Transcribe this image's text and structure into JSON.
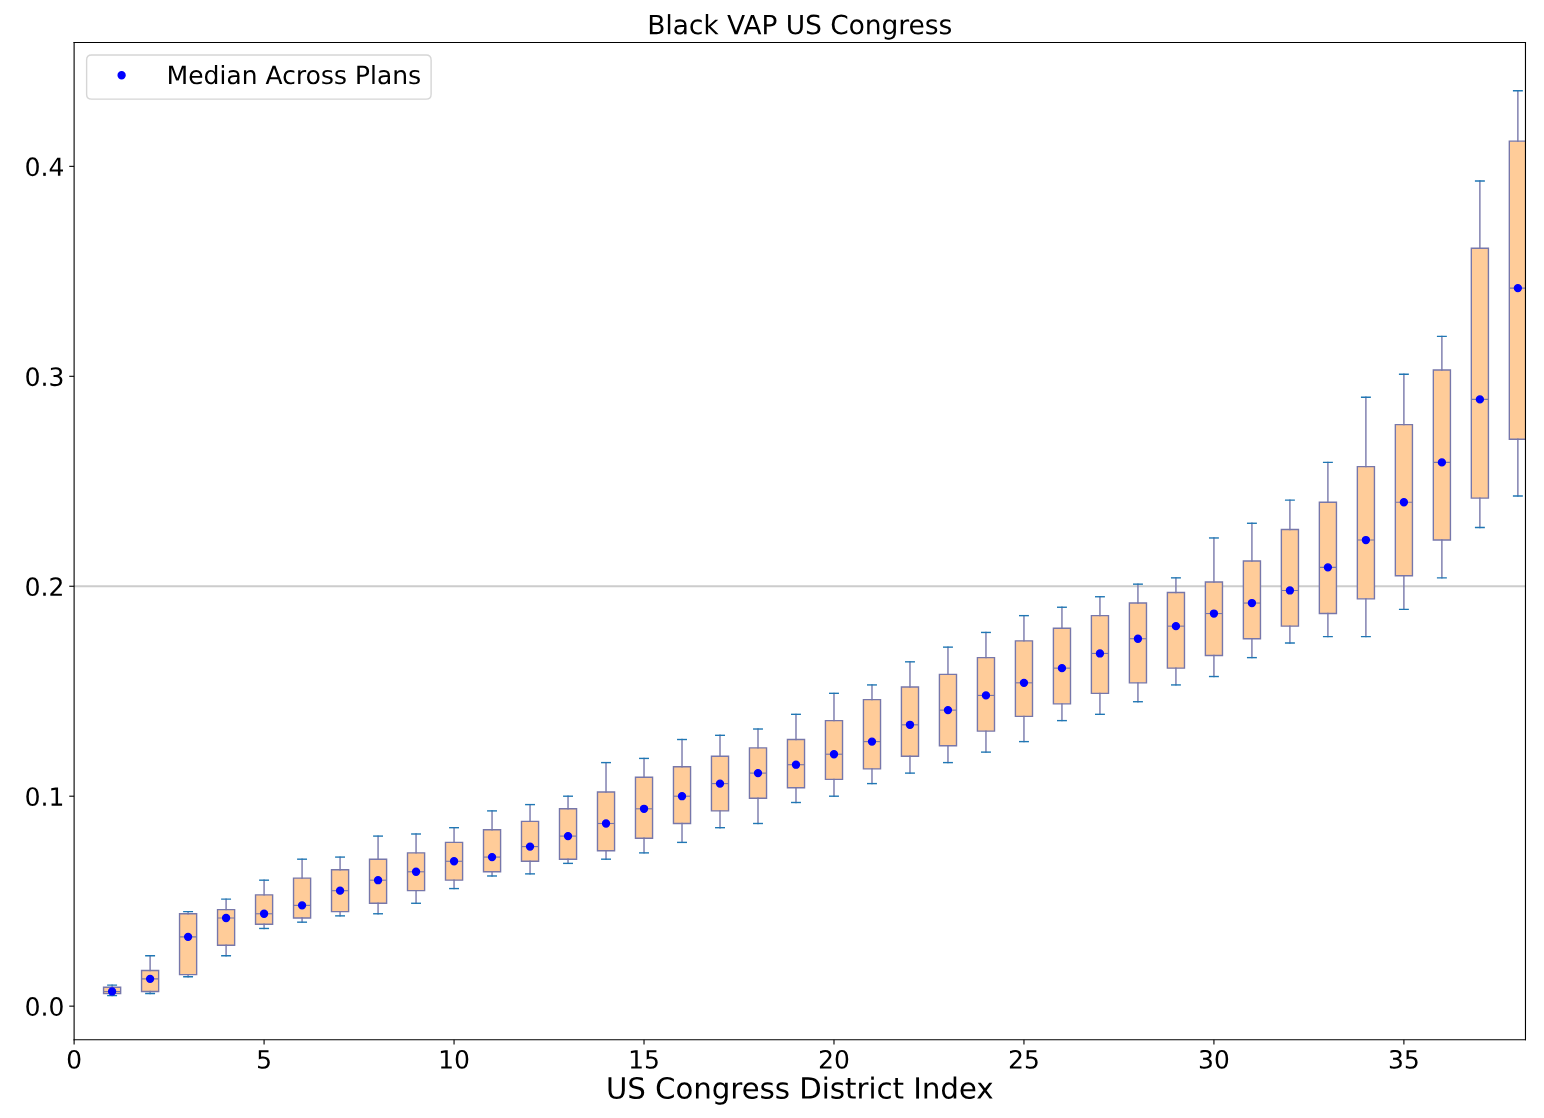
{
  "chart_data": {
    "type": "box",
    "title": "Black VAP US Congress",
    "xlabel": "US Congress District Index",
    "x": [
      1,
      2,
      3,
      4,
      5,
      6,
      7,
      8,
      9,
      10,
      11,
      12,
      13,
      14,
      15,
      16,
      17,
      18,
      19,
      20,
      21,
      22,
      23,
      24,
      25,
      26,
      27,
      28,
      29,
      30,
      31,
      32,
      33,
      34,
      35,
      36,
      37,
      38
    ],
    "color": "#ffcc99",
    "boxes": [
      {
        "low": 0.005,
        "q1": 0.006,
        "median": 0.007,
        "q3": 0.009,
        "high": 0.01
      },
      {
        "low": 0.006,
        "q1": 0.007,
        "median": 0.013,
        "q3": 0.017,
        "high": 0.024
      },
      {
        "low": 0.014,
        "q1": 0.015,
        "median": 0.033,
        "q3": 0.044,
        "high": 0.045
      },
      {
        "low": 0.024,
        "q1": 0.029,
        "median": 0.042,
        "q3": 0.046,
        "high": 0.051
      },
      {
        "low": 0.037,
        "q1": 0.039,
        "median": 0.044,
        "q3": 0.053,
        "high": 0.06
      },
      {
        "low": 0.04,
        "q1": 0.042,
        "median": 0.048,
        "q3": 0.061,
        "high": 0.07
      },
      {
        "low": 0.043,
        "q1": 0.045,
        "median": 0.055,
        "q3": 0.065,
        "high": 0.071
      },
      {
        "low": 0.044,
        "q1": 0.049,
        "median": 0.06,
        "q3": 0.07,
        "high": 0.081
      },
      {
        "low": 0.049,
        "q1": 0.055,
        "median": 0.064,
        "q3": 0.073,
        "high": 0.082
      },
      {
        "low": 0.056,
        "q1": 0.06,
        "median": 0.069,
        "q3": 0.078,
        "high": 0.085
      },
      {
        "low": 0.062,
        "q1": 0.064,
        "median": 0.071,
        "q3": 0.084,
        "high": 0.093
      },
      {
        "low": 0.063,
        "q1": 0.069,
        "median": 0.076,
        "q3": 0.088,
        "high": 0.096
      },
      {
        "low": 0.068,
        "q1": 0.07,
        "median": 0.081,
        "q3": 0.094,
        "high": 0.1
      },
      {
        "low": 0.07,
        "q1": 0.074,
        "median": 0.087,
        "q3": 0.102,
        "high": 0.116
      },
      {
        "low": 0.073,
        "q1": 0.08,
        "median": 0.094,
        "q3": 0.109,
        "high": 0.118
      },
      {
        "low": 0.078,
        "q1": 0.087,
        "median": 0.1,
        "q3": 0.114,
        "high": 0.127
      },
      {
        "low": 0.085,
        "q1": 0.093,
        "median": 0.106,
        "q3": 0.119,
        "high": 0.129
      },
      {
        "low": 0.087,
        "q1": 0.099,
        "median": 0.111,
        "q3": 0.123,
        "high": 0.132
      },
      {
        "low": 0.097,
        "q1": 0.104,
        "median": 0.115,
        "q3": 0.127,
        "high": 0.139
      },
      {
        "low": 0.1,
        "q1": 0.108,
        "median": 0.12,
        "q3": 0.136,
        "high": 0.149
      },
      {
        "low": 0.106,
        "q1": 0.113,
        "median": 0.126,
        "q3": 0.146,
        "high": 0.153
      },
      {
        "low": 0.111,
        "q1": 0.119,
        "median": 0.134,
        "q3": 0.152,
        "high": 0.164
      },
      {
        "low": 0.116,
        "q1": 0.124,
        "median": 0.141,
        "q3": 0.158,
        "high": 0.171
      },
      {
        "low": 0.121,
        "q1": 0.131,
        "median": 0.148,
        "q3": 0.166,
        "high": 0.178
      },
      {
        "low": 0.126,
        "q1": 0.138,
        "median": 0.154,
        "q3": 0.174,
        "high": 0.186
      },
      {
        "low": 0.136,
        "q1": 0.144,
        "median": 0.161,
        "q3": 0.18,
        "high": 0.19
      },
      {
        "low": 0.139,
        "q1": 0.149,
        "median": 0.168,
        "q3": 0.186,
        "high": 0.195
      },
      {
        "low": 0.145,
        "q1": 0.154,
        "median": 0.175,
        "q3": 0.192,
        "high": 0.201
      },
      {
        "low": 0.153,
        "q1": 0.161,
        "median": 0.181,
        "q3": 0.197,
        "high": 0.204
      },
      {
        "low": 0.157,
        "q1": 0.167,
        "median": 0.187,
        "q3": 0.202,
        "high": 0.223
      },
      {
        "low": 0.166,
        "q1": 0.175,
        "median": 0.192,
        "q3": 0.212,
        "high": 0.23
      },
      {
        "low": 0.173,
        "q1": 0.181,
        "median": 0.198,
        "q3": 0.227,
        "high": 0.241
      },
      {
        "low": 0.176,
        "q1": 0.187,
        "median": 0.209,
        "q3": 0.24,
        "high": 0.259
      },
      {
        "low": 0.176,
        "q1": 0.194,
        "median": 0.222,
        "q3": 0.257,
        "high": 0.29
      },
      {
        "low": 0.189,
        "q1": 0.205,
        "median": 0.24,
        "q3": 0.277,
        "high": 0.301
      },
      {
        "low": 0.204,
        "q1": 0.222,
        "median": 0.259,
        "q3": 0.303,
        "high": 0.319
      },
      {
        "low": 0.228,
        "q1": 0.242,
        "median": 0.289,
        "q3": 0.361,
        "high": 0.393
      },
      {
        "low": 0.243,
        "q1": 0.27,
        "median": 0.342,
        "q3": 0.412,
        "high": 0.436
      }
    ],
    "series": [
      {
        "name": "Median Across Plans",
        "type": "scatter",
        "color": "#0000ff",
        "marker": "circle",
        "values": [
          0.007,
          0.013,
          0.033,
          0.042,
          0.044,
          0.048,
          0.055,
          0.06,
          0.064,
          0.069,
          0.071,
          0.076,
          0.081,
          0.087,
          0.094,
          0.1,
          0.106,
          0.111,
          0.115,
          0.12,
          0.126,
          0.134,
          0.141,
          0.148,
          0.154,
          0.161,
          0.168,
          0.175,
          0.181,
          0.187,
          0.192,
          0.198,
          0.209,
          0.222,
          0.24,
          0.259,
          0.289,
          0.342
        ]
      }
    ],
    "xlim": [
      0,
      38.2
    ],
    "xticks": [
      0,
      5,
      10,
      15,
      20,
      25,
      30,
      35
    ],
    "ylim": [
      -0.016,
      0.459
    ],
    "yticks": [
      {
        "value": 0,
        "label": "0.0"
      },
      0.1,
      0.2,
      0.3,
      0.4
    ],
    "ref_lines": [
      {
        "axis": "y",
        "value": 0.2,
        "color": "#cccccc"
      }
    ],
    "grid": false,
    "legend": "top left"
  }
}
